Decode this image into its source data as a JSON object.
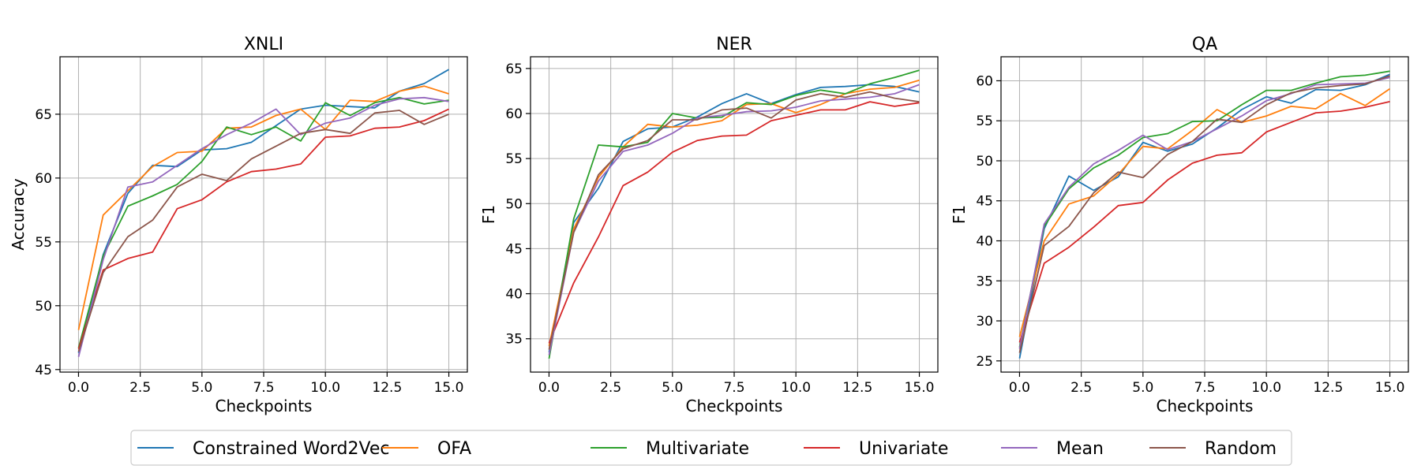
{
  "chart_data": [
    {
      "type": "line",
      "title": "XNLI",
      "xlabel": "Checkpoints",
      "ylabel": "Accuracy",
      "xlim": [
        -0.75,
        15.75
      ],
      "ylim": [
        44.8,
        69.5
      ],
      "xticks": [
        0,
        2.5,
        5,
        7.5,
        10,
        12.5,
        15
      ],
      "xtick_labels": [
        "0.0",
        "2.5",
        "5.0",
        "7.5",
        "10.0",
        "12.5",
        "15.0"
      ],
      "yticks": [
        45,
        50,
        55,
        60,
        65
      ],
      "ytick_labels": [
        "45",
        "50",
        "55",
        "60",
        "65"
      ],
      "grid": true,
      "x": [
        0,
        1,
        2,
        3,
        4,
        5,
        6,
        7,
        8,
        9,
        10,
        11,
        12,
        13,
        14,
        15
      ],
      "series": [
        {
          "name": "Constrained Word2Vec",
          "color": "#1f77b4",
          "values": [
            46.3,
            54.0,
            58.8,
            61.0,
            60.9,
            62.2,
            62.3,
            62.8,
            64.1,
            65.4,
            65.7,
            65.6,
            65.5,
            66.8,
            67.4,
            68.5
          ]
        },
        {
          "name": "OFA",
          "color": "#ff7f0e",
          "values": [
            48.1,
            57.1,
            59.0,
            60.9,
            62.0,
            62.1,
            63.9,
            64.0,
            64.9,
            65.4,
            63.8,
            66.1,
            66.0,
            66.8,
            67.2,
            66.6
          ]
        },
        {
          "name": "Multivariate",
          "color": "#2ca02c",
          "values": [
            46.7,
            53.9,
            57.8,
            58.6,
            59.5,
            61.3,
            64.0,
            63.4,
            64.0,
            62.9,
            65.9,
            64.9,
            65.9,
            66.3,
            65.8,
            66.1
          ]
        },
        {
          "name": "Univariate",
          "color": "#d62728",
          "values": [
            46.6,
            52.8,
            53.7,
            54.2,
            57.6,
            58.3,
            59.7,
            60.5,
            60.7,
            61.1,
            63.2,
            63.3,
            63.9,
            64.0,
            64.5,
            65.4
          ]
        },
        {
          "name": "Mean",
          "color": "#9467bd",
          "values": [
            46.0,
            53.6,
            59.3,
            59.7,
            61.0,
            62.3,
            63.4,
            64.3,
            65.4,
            63.4,
            64.3,
            64.7,
            65.7,
            66.2,
            66.3,
            66.0
          ]
        },
        {
          "name": "Random",
          "color": "#8c564b",
          "values": [
            46.4,
            52.6,
            55.4,
            56.7,
            59.3,
            60.3,
            59.8,
            61.5,
            62.5,
            63.5,
            63.8,
            63.5,
            65.1,
            65.3,
            64.2,
            65.0
          ]
        }
      ]
    },
    {
      "type": "line",
      "title": "NER",
      "xlabel": "Checkpoints",
      "ylabel": "F1",
      "xlim": [
        -0.75,
        15.75
      ],
      "ylim": [
        31.3,
        66.3
      ],
      "xticks": [
        0,
        2.5,
        5,
        7.5,
        10,
        12.5,
        15
      ],
      "xtick_labels": [
        "0.0",
        "2.5",
        "5.0",
        "7.5",
        "10.0",
        "12.5",
        "15.0"
      ],
      "yticks": [
        35,
        40,
        45,
        50,
        55,
        60,
        65
      ],
      "ytick_labels": [
        "35",
        "40",
        "45",
        "50",
        "55",
        "60",
        "65"
      ],
      "grid": true,
      "x": [
        0,
        1,
        2,
        3,
        4,
        5,
        6,
        7,
        8,
        9,
        10,
        11,
        12,
        13,
        14,
        15
      ],
      "series": [
        {
          "name": "Constrained Word2Vec",
          "color": "#1f77b4",
          "values": [
            33.5,
            47.9,
            51.7,
            56.9,
            58.3,
            58.5,
            59.6,
            61.1,
            62.2,
            61.1,
            62.1,
            62.9,
            63.0,
            63.2,
            63.0,
            62.4
          ]
        },
        {
          "name": "OFA",
          "color": "#ff7f0e",
          "values": [
            34.2,
            47.2,
            52.9,
            56.3,
            58.8,
            58.5,
            58.7,
            59.2,
            61.0,
            61.1,
            60.1,
            61.0,
            62.2,
            62.7,
            62.9,
            63.7
          ]
        },
        {
          "name": "Multivariate",
          "color": "#2ca02c",
          "values": [
            32.8,
            48.3,
            56.5,
            56.3,
            56.8,
            60.0,
            59.5,
            59.6,
            61.2,
            61.0,
            62.0,
            62.6,
            62.2,
            63.3,
            64.0,
            64.8
          ]
        },
        {
          "name": "Univariate",
          "color": "#d62728",
          "values": [
            34.5,
            41.2,
            46.3,
            52.0,
            53.5,
            55.7,
            57.0,
            57.5,
            57.6,
            59.2,
            59.8,
            60.4,
            60.4,
            61.3,
            60.8,
            61.2
          ]
        },
        {
          "name": "Mean",
          "color": "#9467bd",
          "values": [
            33.2,
            46.8,
            52.5,
            55.8,
            56.5,
            57.8,
            59.5,
            59.8,
            60.2,
            60.3,
            60.7,
            61.4,
            61.6,
            61.8,
            62.2,
            63.2
          ]
        },
        {
          "name": "Random",
          "color": "#8c564b",
          "values": [
            33.8,
            46.8,
            53.2,
            56.1,
            57.0,
            59.3,
            59.3,
            60.4,
            60.6,
            59.5,
            61.5,
            62.2,
            61.8,
            62.4,
            61.7,
            61.3
          ]
        }
      ]
    },
    {
      "type": "line",
      "title": "QA",
      "xlabel": "Checkpoints",
      "ylabel": "F1",
      "xlim": [
        -0.75,
        15.75
      ],
      "ylim": [
        23.6,
        63.0
      ],
      "xticks": [
        0,
        2.5,
        5,
        7.5,
        10,
        12.5,
        15
      ],
      "xtick_labels": [
        "0.0",
        "2.5",
        "5.0",
        "7.5",
        "10.0",
        "12.5",
        "15.0"
      ],
      "yticks": [
        25,
        30,
        35,
        40,
        45,
        50,
        55,
        60
      ],
      "ytick_labels": [
        "25",
        "30",
        "35",
        "40",
        "45",
        "50",
        "55",
        "60"
      ],
      "grid": true,
      "x": [
        0,
        1,
        2,
        3,
        4,
        5,
        6,
        7,
        8,
        9,
        10,
        11,
        12,
        13,
        14,
        15
      ],
      "series": [
        {
          "name": "Constrained Word2Vec",
          "color": "#1f77b4",
          "values": [
            25.3,
            41.5,
            48.1,
            46.3,
            48.0,
            52.3,
            51.2,
            52.1,
            54.1,
            56.4,
            58.0,
            57.2,
            58.9,
            58.8,
            59.5,
            60.8
          ]
        },
        {
          "name": "OFA",
          "color": "#ff7f0e",
          "values": [
            28.0,
            40.0,
            44.6,
            45.6,
            48.3,
            51.8,
            51.5,
            53.8,
            56.4,
            54.8,
            55.6,
            56.8,
            56.5,
            58.4,
            56.9,
            59.0
          ]
        },
        {
          "name": "Multivariate",
          "color": "#2ca02c",
          "values": [
            26.7,
            41.8,
            46.5,
            49.1,
            50.7,
            52.9,
            53.4,
            54.9,
            55.0,
            57.0,
            58.8,
            58.8,
            59.7,
            60.5,
            60.7,
            61.2
          ]
        },
        {
          "name": "Univariate",
          "color": "#d62728",
          "values": [
            27.3,
            37.2,
            39.2,
            41.7,
            44.4,
            44.8,
            47.6,
            49.7,
            50.7,
            51.0,
            53.6,
            54.8,
            56.0,
            56.2,
            56.7,
            57.4
          ]
        },
        {
          "name": "Mean",
          "color": "#9467bd",
          "values": [
            26.5,
            42.1,
            46.7,
            49.6,
            51.3,
            53.2,
            51.4,
            52.4,
            54.0,
            55.6,
            57.5,
            58.4,
            59.5,
            59.6,
            59.7,
            60.4
          ]
        },
        {
          "name": "Random",
          "color": "#8c564b",
          "values": [
            26.0,
            39.4,
            41.8,
            46.0,
            48.6,
            47.9,
            50.8,
            52.4,
            55.2,
            54.8,
            57.0,
            58.5,
            59.1,
            59.4,
            59.6,
            60.6
          ]
        }
      ]
    }
  ],
  "legend": {
    "placement": "bottom-center",
    "entries": [
      {
        "label": "Constrained Word2Vec",
        "color": "#1f77b4"
      },
      {
        "label": "OFA",
        "color": "#ff7f0e"
      },
      {
        "label": "Multivariate",
        "color": "#2ca02c"
      },
      {
        "label": "Univariate",
        "color": "#d62728"
      },
      {
        "label": "Mean",
        "color": "#9467bd"
      },
      {
        "label": "Random",
        "color": "#8c564b"
      }
    ]
  }
}
